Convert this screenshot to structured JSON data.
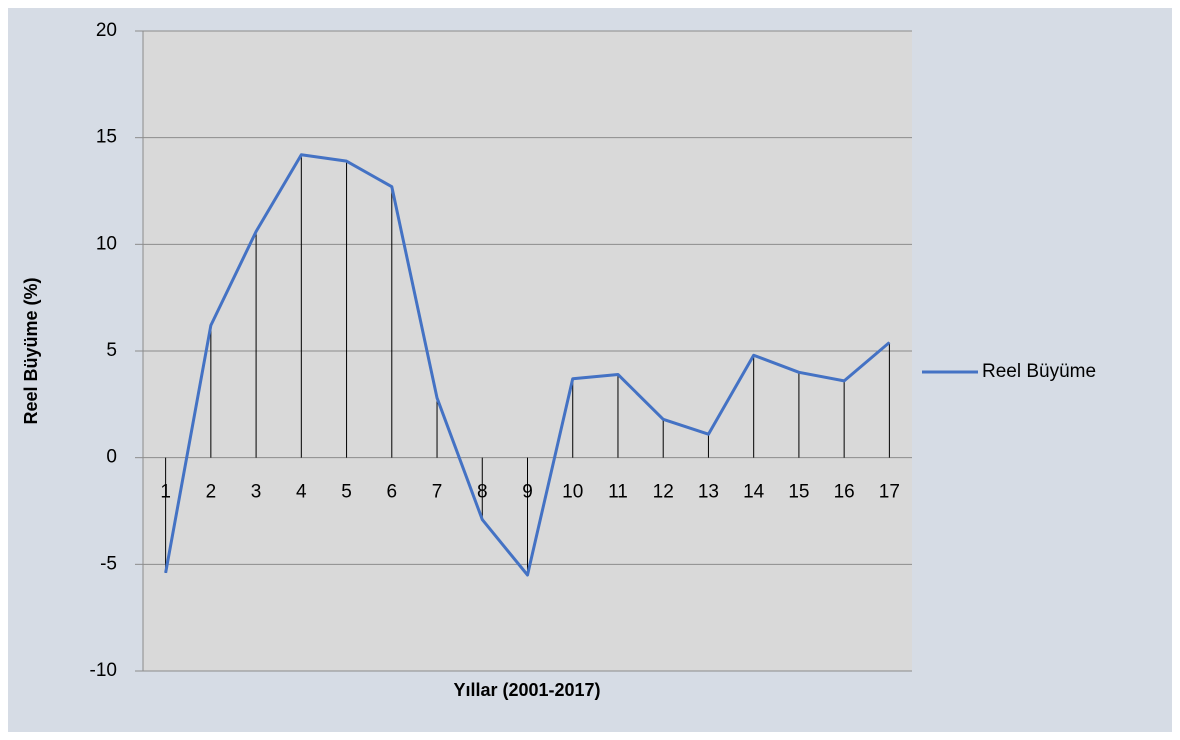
{
  "chart_data": {
    "type": "line",
    "x_label": "Yıllar (2001-2017)",
    "y_label": "Reel Büyüme (%)",
    "categories": [
      "1",
      "2",
      "3",
      "4",
      "5",
      "6",
      "7",
      "8",
      "9",
      "10",
      "11",
      "12",
      "13",
      "14",
      "15",
      "16",
      "17"
    ],
    "series": [
      {
        "name": "Reel Büyüme",
        "color": "#4472c4",
        "values": [
          -5.4,
          6.2,
          10.6,
          14.2,
          13.9,
          12.7,
          2.8,
          -2.9,
          -5.5,
          3.7,
          3.9,
          1.8,
          1.1,
          4.8,
          4.0,
          3.6,
          5.4
        ]
      }
    ],
    "ylim": [
      -10,
      20
    ],
    "yticks": [
      -10,
      -5,
      0,
      5,
      10,
      15,
      20
    ],
    "grid": true,
    "drop_lines": true,
    "legend": "right"
  }
}
